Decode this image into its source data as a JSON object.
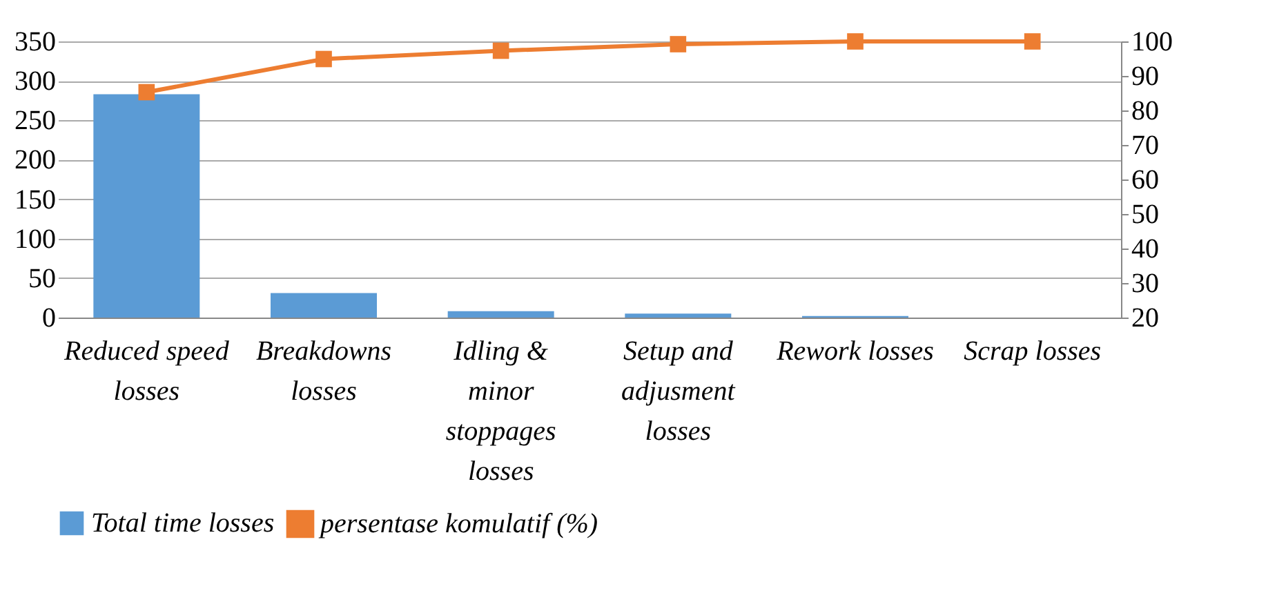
{
  "chart_data": {
    "type": "bar",
    "categories": [
      "Reduced speed losses",
      "Breakdowns losses",
      "Idling & minor stoppages losses",
      "Setup and adjusment losses",
      "Rework losses",
      "Scrap losses"
    ],
    "series": [
      {
        "name": "Total time losses",
        "color": "#5b9bd5",
        "values": [
          283,
          31,
          8,
          5,
          2,
          0
        ]
      },
      {
        "name": "persentase komulatif (%)",
        "type": "line",
        "axis": "y2",
        "color": "#ed7d31",
        "marker": "square",
        "values": [
          85.3,
          94.9,
          97.3,
          99.2,
          100,
          100
        ]
      }
    ],
    "ylim": [
      0,
      350
    ],
    "yticks": [
      0,
      50,
      100,
      150,
      200,
      250,
      300,
      350
    ],
    "y2lim": [
      20,
      100
    ],
    "y2ticks": [
      20,
      30,
      40,
      50,
      60,
      70,
      80,
      90,
      100
    ],
    "grid": "y",
    "legend": "bottom"
  }
}
